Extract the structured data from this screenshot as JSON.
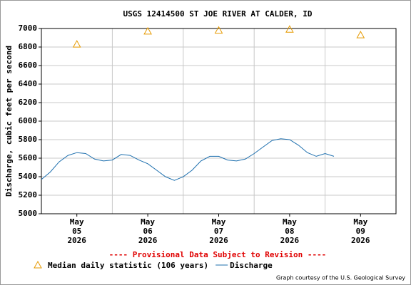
{
  "chart_data": {
    "type": "line",
    "title": "USGS 12414500 ST JOE RIVER AT CALDER, ID",
    "y_label": "Discharge, cubic feet per second",
    "note": "---- Provisional Data Subject to Revision ----",
    "credit": "Graph courtesy of the U.S. Geological Survey",
    "ylim": [
      5000,
      7000
    ],
    "yticks": [
      5000,
      5200,
      5400,
      5600,
      5800,
      6000,
      6200,
      6400,
      6600,
      6800,
      7000
    ],
    "xlim": [
      "2026-05-05T00:00",
      "2026-05-10T00:00"
    ],
    "xticks": [
      {
        "value": "2026-05-05T12:00",
        "label": [
          "May",
          "05",
          "2026"
        ]
      },
      {
        "value": "2026-05-06T12:00",
        "label": [
          "May",
          "06",
          "2026"
        ]
      },
      {
        "value": "2026-05-07T12:00",
        "label": [
          "May",
          "07",
          "2026"
        ]
      },
      {
        "value": "2026-05-08T12:00",
        "label": [
          "May",
          "08",
          "2026"
        ]
      },
      {
        "value": "2026-05-09T12:00",
        "label": [
          "May",
          "09",
          "2026"
        ]
      }
    ],
    "grid": true,
    "series": [
      {
        "name": "Median daily statistic (106 years)",
        "marker": "triangle",
        "color": "#e69a00",
        "x": [
          "2026-05-05T12:00",
          "2026-05-06T12:00",
          "2026-05-07T12:00",
          "2026-05-08T12:00",
          "2026-05-09T12:00"
        ],
        "values": [
          6830,
          6970,
          6980,
          6990,
          6930
        ]
      },
      {
        "name": "Discharge",
        "marker": "line",
        "color": "#1d6fae",
        "x": [
          "2026-05-05T00:00",
          "2026-05-05T03:00",
          "2026-05-05T06:00",
          "2026-05-05T09:00",
          "2026-05-05T12:00",
          "2026-05-05T15:00",
          "2026-05-05T18:00",
          "2026-05-05T21:00",
          "2026-05-06T00:00",
          "2026-05-06T03:00",
          "2026-05-06T06:00",
          "2026-05-06T09:00",
          "2026-05-06T12:00",
          "2026-05-06T15:00",
          "2026-05-06T18:00",
          "2026-05-06T21:00",
          "2026-05-07T00:00",
          "2026-05-07T03:00",
          "2026-05-07T06:00",
          "2026-05-07T09:00",
          "2026-05-07T12:00",
          "2026-05-07T15:00",
          "2026-05-07T18:00",
          "2026-05-07T21:00",
          "2026-05-08T00:00",
          "2026-05-08T03:00",
          "2026-05-08T06:00",
          "2026-05-08T09:00",
          "2026-05-08T12:00",
          "2026-05-08T15:00",
          "2026-05-08T18:00",
          "2026-05-08T21:00",
          "2026-05-09T00:00",
          "2026-05-09T03:00"
        ],
        "values": [
          5370,
          5450,
          5560,
          5630,
          5660,
          5650,
          5590,
          5570,
          5580,
          5640,
          5630,
          5580,
          5540,
          5470,
          5400,
          5360,
          5400,
          5470,
          5570,
          5620,
          5620,
          5580,
          5570,
          5590,
          5650,
          5720,
          5790,
          5810,
          5800,
          5740,
          5660,
          5620,
          5650,
          5620
        ]
      }
    ]
  }
}
